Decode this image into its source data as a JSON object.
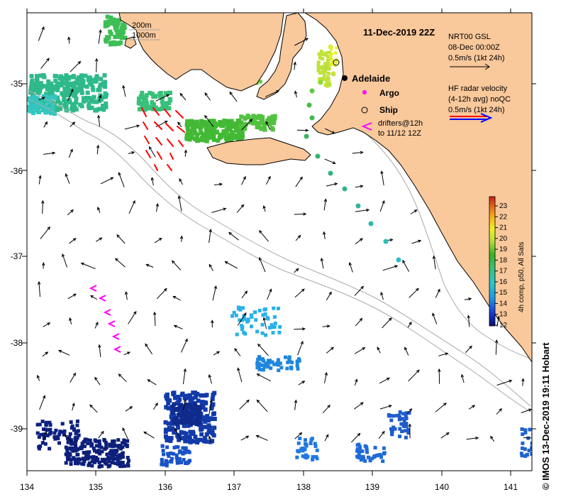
{
  "title": "11-Dec-2019 22Z",
  "credit": "© IMOS 13-Dec-2019 19:11 Hobart",
  "map": {
    "lon_ticks": [
      "134",
      "135",
      "136",
      "137",
      "138",
      "139",
      "140",
      "141"
    ],
    "lat_ticks": [
      "-35",
      "-36",
      "-37",
      "-38",
      "-39"
    ],
    "lon_range": [
      134,
      141.3
    ],
    "lat_range": [
      -39.45,
      -34.05
    ]
  },
  "depth_legend": {
    "a": "200m",
    "b": "1000m"
  },
  "places": {
    "city": "Adelaide"
  },
  "legend": {
    "argo": "Argo",
    "ship": "Ship",
    "drifters_1": "drifters@12h",
    "drifters_2": "to 11/12 12Z",
    "gsl_1": "NRT00 GSL",
    "gsl_2": "08-Dec 00:00Z",
    "gsl_3": "0.5m/s (1kt 24h)",
    "hf_1": "HF radar velocity",
    "hf_2": "(4-12h avg) noQC",
    "hf_3": "0.5m/s (1kt 24h)"
  },
  "colorbar": {
    "title": "4h comp, p50, All Sats",
    "min": 12,
    "max": 23,
    "labels": [
      "23",
      "22",
      "21",
      "20",
      "19",
      "18",
      "17",
      "16",
      "15",
      "14",
      "13",
      "12"
    ]
  },
  "colors": {
    "land": "#f9c89b",
    "argo": "#ff00ff",
    "drifter": "#ff00ff",
    "hf_red": "#ff0000",
    "hf_blue": "#0000ff"
  }
}
